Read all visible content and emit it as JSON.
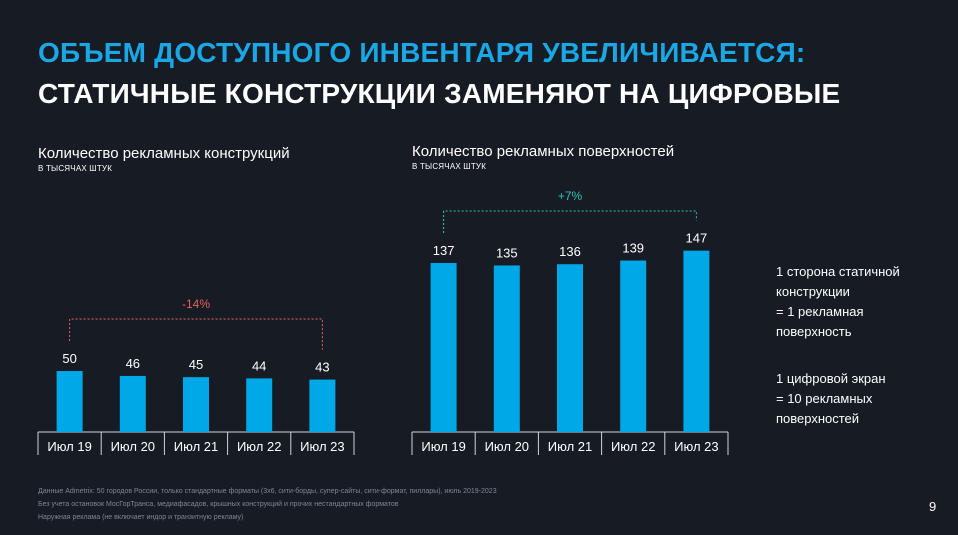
{
  "slide": {
    "title_line1": "ОБЪЕМ ДОСТУПНОГО ИНВЕНТАРЯ УВЕЛИЧИВАЕТСЯ:",
    "title_line2": "СТАТИЧНЫЕ КОНСТРУКЦИИ ЗАМЕНЯЮТ НА ЦИФРОВЫЕ",
    "page_number": "9"
  },
  "colors": {
    "accent": "#1aa7e6",
    "bar": "#00a8e8",
    "decline": "#e8625a",
    "growth": "#2ec4b6",
    "background": "#161b24"
  },
  "notes": {
    "note1": "1 сторона статичной\nконструкции\n= 1 рекламная\nповерхность",
    "note2": "1 цифровой экран\n= 10 рекламных\nповерхностей"
  },
  "footnotes": [
    "Данные Admetrix: 50 городов России, только стандартные форматы (3x6, сити-борды, супер-сайты, сити-формат, пиллары), июль 2019-2023",
    "Без учета остановок МосГорТранса, медиафасадов, крышных конструкций и прочих нестандартных форматов",
    "Наружная реклама (не включает индор и транзитную рекламу)"
  ],
  "chart_data": [
    {
      "type": "bar",
      "title": "Количество рекламных конструкций",
      "ylabel": "В ТЫСЯЧАХ ШТУК",
      "categories": [
        "Июл 19",
        "Июл 20",
        "Июл 21",
        "Июл 22",
        "Июл 23"
      ],
      "values": [
        50,
        46,
        45,
        44,
        43
      ],
      "change_label": "-14%",
      "ylim": [
        0,
        160
      ]
    },
    {
      "type": "bar",
      "title": "Количество рекламных поверхностей",
      "ylabel": "В ТЫСЯЧАХ ШТУК",
      "categories": [
        "Июл 19",
        "Июл 20",
        "Июл 21",
        "Июл 22",
        "Июл 23"
      ],
      "values": [
        137,
        135,
        136,
        139,
        147
      ],
      "change_label": "+7%",
      "ylim": [
        0,
        160
      ]
    }
  ]
}
